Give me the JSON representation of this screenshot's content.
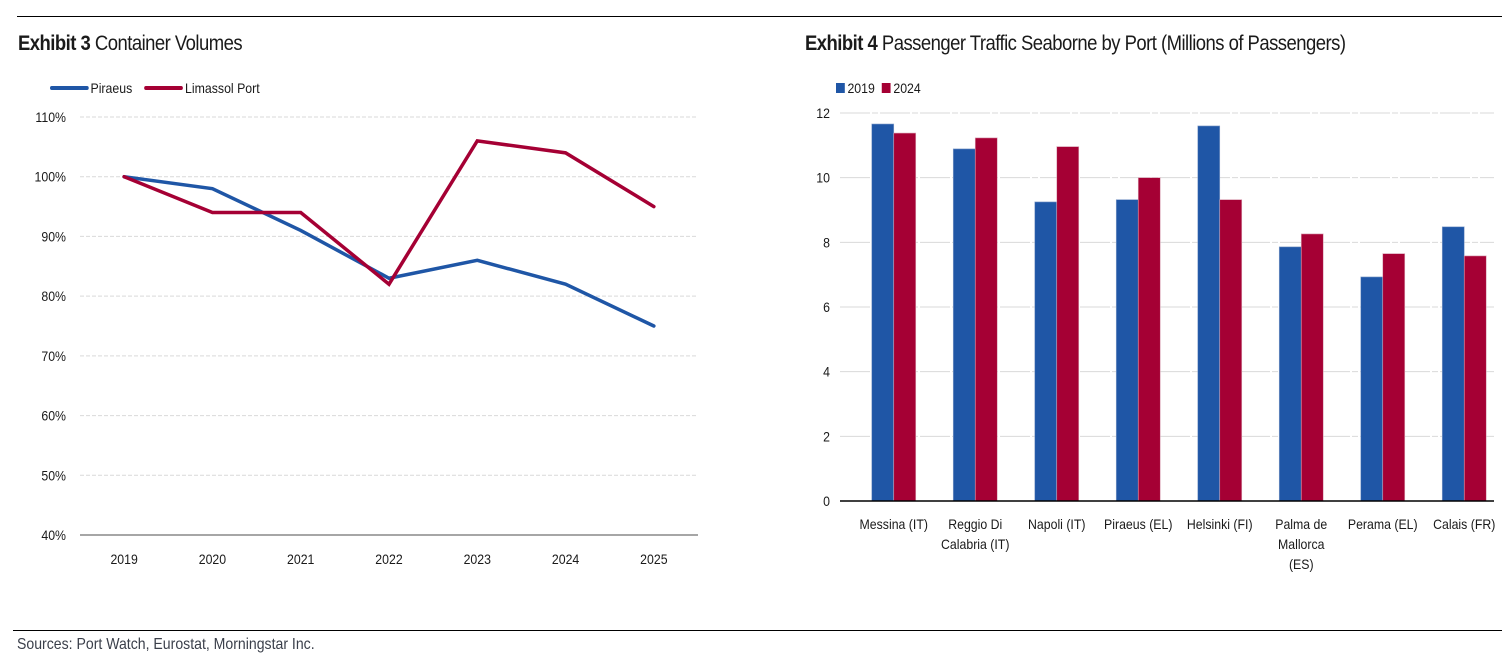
{
  "source_note": "Sources: Port Watch, Eurostat, Morningstar Inc.",
  "colors": {
    "blue": "#1f56a6",
    "red": "#a50034",
    "grid": "#d9d9d9",
    "axis": "#a6a6a6"
  },
  "exhibit3": {
    "label": "Exhibit 3",
    "title": "Container Volumes"
  },
  "exhibit4": {
    "label": "Exhibit 4",
    "title": "Passenger Traffic Seaborne by Port (Millions of Passengers)"
  },
  "chart_data": [
    {
      "type": "line",
      "title": "Exhibit 3 Container Volumes",
      "xlabel": "",
      "ylabel": "",
      "x": [
        "2019",
        "2020",
        "2021",
        "2022",
        "2023",
        "2024",
        "2025"
      ],
      "yticks": [
        "40%",
        "50%",
        "60%",
        "70%",
        "80%",
        "90%",
        "100%",
        "110%"
      ],
      "ylim": [
        40,
        110
      ],
      "grid": true,
      "legend_position": "top-left",
      "series": [
        {
          "name": "Piraeus",
          "color": "#1f56a6",
          "values": [
            100,
            98,
            91,
            83,
            86,
            82,
            75
          ]
        },
        {
          "name": "Limassol Port",
          "color": "#a50034",
          "values": [
            100,
            94,
            94,
            82,
            106,
            104,
            95
          ]
        }
      ]
    },
    {
      "type": "bar",
      "title": "Exhibit 4 Passenger Traffic Seaborne by Port (Millions of Passengers)",
      "xlabel": "",
      "ylabel": "Millions of Passengers",
      "categories": [
        [
          "Messina (IT)"
        ],
        [
          "Reggio Di",
          "Calabria (IT)"
        ],
        [
          "Napoli (IT)"
        ],
        [
          "Piraeus (EL)"
        ],
        [
          "Helsinki (FI)"
        ],
        [
          "Palma de",
          "Mallorca",
          "(ES)"
        ],
        [
          "Perama (EL)"
        ],
        [
          "Calais (FR)"
        ]
      ],
      "yticks": [
        "0",
        "2",
        "4",
        "6",
        "8",
        "10",
        "12"
      ],
      "ylim": [
        0,
        12
      ],
      "grid": true,
      "legend_position": "top-left",
      "series": [
        {
          "name": "2019",
          "color": "#1f56a6",
          "values": [
            11.66,
            10.89,
            9.25,
            9.32,
            11.6,
            7.86,
            6.93,
            8.48
          ]
        },
        {
          "name": "2024",
          "color": "#a50034",
          "values": [
            11.38,
            11.23,
            10.96,
            10.0,
            9.32,
            8.26,
            7.65,
            7.58
          ]
        }
      ]
    }
  ]
}
